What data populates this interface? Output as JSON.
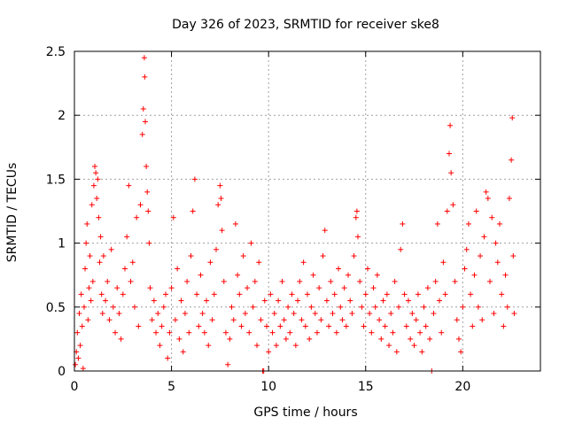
{
  "chart_data": {
    "type": "scatter",
    "title": "Day 326 of 2023, SRMTID for receiver ske8",
    "xlabel": "GPS time / hours",
    "ylabel": "SRMTID / TECUs",
    "xlim": [
      0,
      24
    ],
    "ylim": [
      0,
      2.5
    ],
    "xticks": [
      0,
      5,
      10,
      15,
      20
    ],
    "xtick_labels": [
      "0",
      "5",
      "10",
      "15",
      "20"
    ],
    "yticks": [
      0,
      0.5,
      1,
      1.5,
      2,
      2.5
    ],
    "ytick_labels": [
      "0",
      "0.5",
      "1",
      "1.5",
      "2",
      "2.5"
    ],
    "grid": true,
    "marker": "+",
    "color": "#ff0000",
    "series": [
      {
        "name": "SRMTID",
        "points": [
          [
            0.05,
            0.05
          ],
          [
            0.1,
            0.15
          ],
          [
            0.15,
            0.3
          ],
          [
            0.2,
            0.1
          ],
          [
            0.25,
            0.45
          ],
          [
            0.3,
            0.2
          ],
          [
            0.35,
            0.6
          ],
          [
            0.4,
            0.35
          ],
          [
            0.45,
            0.02
          ],
          [
            0.5,
            0.5
          ],
          [
            0.55,
            0.8
          ],
          [
            0.6,
            1.0
          ],
          [
            0.65,
            1.15
          ],
          [
            0.7,
            0.4
          ],
          [
            0.75,
            0.65
          ],
          [
            0.8,
            0.9
          ],
          [
            0.85,
            0.55
          ],
          [
            0.9,
            1.3
          ],
          [
            0.95,
            0.7
          ],
          [
            1.0,
            1.45
          ],
          [
            1.05,
            1.6
          ],
          [
            1.1,
            1.55
          ],
          [
            1.15,
            1.35
          ],
          [
            1.2,
            1.5
          ],
          [
            1.25,
            1.2
          ],
          [
            1.3,
            0.85
          ],
          [
            1.35,
            1.05
          ],
          [
            1.4,
            0.6
          ],
          [
            1.45,
            0.45
          ],
          [
            1.5,
            0.9
          ],
          [
            1.6,
            0.55
          ],
          [
            1.7,
            0.7
          ],
          [
            1.8,
            0.4
          ],
          [
            1.9,
            0.95
          ],
          [
            2.0,
            0.5
          ],
          [
            2.1,
            0.3
          ],
          [
            2.2,
            0.65
          ],
          [
            2.3,
            0.45
          ],
          [
            2.4,
            0.25
          ],
          [
            2.5,
            0.6
          ],
          [
            2.6,
            0.8
          ],
          [
            2.7,
            1.05
          ],
          [
            2.8,
            1.45
          ],
          [
            2.9,
            0.7
          ],
          [
            3.0,
            0.85
          ],
          [
            3.1,
            0.5
          ],
          [
            3.2,
            1.2
          ],
          [
            3.3,
            0.35
          ],
          [
            3.4,
            1.3
          ],
          [
            3.5,
            1.85
          ],
          [
            3.55,
            2.05
          ],
          [
            3.6,
            2.45
          ],
          [
            3.62,
            2.3
          ],
          [
            3.65,
            1.95
          ],
          [
            3.7,
            1.6
          ],
          [
            3.75,
            1.4
          ],
          [
            3.8,
            1.25
          ],
          [
            3.85,
            1.0
          ],
          [
            3.9,
            0.65
          ],
          [
            4.0,
            0.4
          ],
          [
            4.1,
            0.55
          ],
          [
            4.2,
            0.3
          ],
          [
            4.3,
            0.45
          ],
          [
            4.4,
            0.2
          ],
          [
            4.5,
            0.35
          ],
          [
            4.6,
            0.5
          ],
          [
            4.7,
            0.6
          ],
          [
            4.8,
            0.1
          ],
          [
            4.9,
            0.3
          ],
          [
            5.0,
            0.65
          ],
          [
            5.1,
            1.2
          ],
          [
            5.2,
            0.4
          ],
          [
            5.3,
            0.8
          ],
          [
            5.4,
            0.25
          ],
          [
            5.5,
            0.55
          ],
          [
            5.6,
            0.15
          ],
          [
            5.7,
            0.45
          ],
          [
            5.8,
            0.7
          ],
          [
            5.9,
            0.3
          ],
          [
            6.0,
            0.9
          ],
          [
            6.1,
            1.25
          ],
          [
            6.2,
            1.5
          ],
          [
            6.3,
            0.6
          ],
          [
            6.4,
            0.35
          ],
          [
            6.5,
            0.75
          ],
          [
            6.6,
            0.45
          ],
          [
            6.7,
            0.3
          ],
          [
            6.8,
            0.55
          ],
          [
            6.9,
            0.2
          ],
          [
            7.0,
            0.85
          ],
          [
            7.1,
            0.4
          ],
          [
            7.2,
            0.6
          ],
          [
            7.3,
            0.95
          ],
          [
            7.4,
            1.3
          ],
          [
            7.5,
            1.45
          ],
          [
            7.55,
            1.35
          ],
          [
            7.6,
            1.1
          ],
          [
            7.7,
            0.7
          ],
          [
            7.8,
            0.3
          ],
          [
            7.9,
            0.05
          ],
          [
            8.0,
            0.25
          ],
          [
            8.1,
            0.5
          ],
          [
            8.2,
            0.4
          ],
          [
            8.3,
            1.15
          ],
          [
            8.4,
            0.75
          ],
          [
            8.5,
            0.6
          ],
          [
            8.6,
            0.35
          ],
          [
            8.7,
            0.9
          ],
          [
            8.8,
            0.45
          ],
          [
            8.9,
            0.65
          ],
          [
            9.0,
            0.3
          ],
          [
            9.1,
            1.0
          ],
          [
            9.2,
            0.5
          ],
          [
            9.3,
            0.7
          ],
          [
            9.4,
            0.2
          ],
          [
            9.5,
            0.85
          ],
          [
            9.6,
            0.4
          ],
          [
            9.7,
            0.0
          ],
          [
            9.75,
            0.0
          ],
          [
            9.8,
            0.55
          ],
          [
            9.9,
            0.35
          ],
          [
            10.0,
            0.15
          ],
          [
            10.1,
            0.6
          ],
          [
            10.2,
            0.3
          ],
          [
            10.3,
            0.45
          ],
          [
            10.4,
            0.2
          ],
          [
            10.5,
            0.55
          ],
          [
            10.6,
            0.35
          ],
          [
            10.7,
            0.7
          ],
          [
            10.8,
            0.4
          ],
          [
            10.9,
            0.25
          ],
          [
            11.0,
            0.5
          ],
          [
            11.1,
            0.3
          ],
          [
            11.2,
            0.6
          ],
          [
            11.3,
            0.45
          ],
          [
            11.4,
            0.2
          ],
          [
            11.5,
            0.55
          ],
          [
            11.6,
            0.7
          ],
          [
            11.7,
            0.4
          ],
          [
            11.8,
            0.85
          ],
          [
            11.9,
            0.35
          ],
          [
            12.0,
            0.6
          ],
          [
            12.1,
            0.25
          ],
          [
            12.2,
            0.5
          ],
          [
            12.3,
            0.75
          ],
          [
            12.4,
            0.45
          ],
          [
            12.5,
            0.3
          ],
          [
            12.6,
            0.65
          ],
          [
            12.7,
            0.4
          ],
          [
            12.8,
            0.9
          ],
          [
            12.9,
            1.1
          ],
          [
            13.0,
            0.55
          ],
          [
            13.1,
            0.35
          ],
          [
            13.2,
            0.7
          ],
          [
            13.3,
            0.45
          ],
          [
            13.4,
            0.6
          ],
          [
            13.5,
            0.3
          ],
          [
            13.6,
            0.8
          ],
          [
            13.7,
            0.5
          ],
          [
            13.8,
            0.4
          ],
          [
            13.9,
            0.65
          ],
          [
            14.0,
            0.35
          ],
          [
            14.1,
            0.75
          ],
          [
            14.2,
            0.55
          ],
          [
            14.3,
            0.45
          ],
          [
            14.4,
            0.9
          ],
          [
            14.5,
            1.2
          ],
          [
            14.55,
            1.25
          ],
          [
            14.6,
            1.05
          ],
          [
            14.7,
            0.7
          ],
          [
            14.8,
            0.5
          ],
          [
            14.9,
            0.35
          ],
          [
            15.0,
            0.6
          ],
          [
            15.1,
            0.8
          ],
          [
            15.2,
            0.45
          ],
          [
            15.3,
            0.3
          ],
          [
            15.4,
            0.65
          ],
          [
            15.5,
            0.5
          ],
          [
            15.6,
            0.75
          ],
          [
            15.7,
            0.4
          ],
          [
            15.8,
            0.25
          ],
          [
            15.9,
            0.55
          ],
          [
            16.0,
            0.35
          ],
          [
            16.1,
            0.6
          ],
          [
            16.2,
            0.2
          ],
          [
            16.3,
            0.45
          ],
          [
            16.4,
            0.3
          ],
          [
            16.5,
            0.7
          ],
          [
            16.6,
            0.15
          ],
          [
            16.7,
            0.5
          ],
          [
            16.8,
            0.95
          ],
          [
            16.9,
            1.15
          ],
          [
            17.0,
            0.6
          ],
          [
            17.1,
            0.35
          ],
          [
            17.2,
            0.55
          ],
          [
            17.3,
            0.25
          ],
          [
            17.4,
            0.45
          ],
          [
            17.5,
            0.2
          ],
          [
            17.6,
            0.4
          ],
          [
            17.7,
            0.6
          ],
          [
            17.8,
            0.3
          ],
          [
            17.9,
            0.15
          ],
          [
            18.0,
            0.5
          ],
          [
            18.1,
            0.35
          ],
          [
            18.2,
            0.65
          ],
          [
            18.3,
            0.25
          ],
          [
            18.4,
            0.0
          ],
          [
            18.5,
            0.45
          ],
          [
            18.6,
            0.7
          ],
          [
            18.7,
            1.15
          ],
          [
            18.8,
            0.55
          ],
          [
            18.9,
            0.3
          ],
          [
            19.0,
            0.85
          ],
          [
            19.1,
            0.6
          ],
          [
            19.2,
            1.25
          ],
          [
            19.3,
            1.7
          ],
          [
            19.35,
            1.92
          ],
          [
            19.4,
            1.55
          ],
          [
            19.5,
            1.3
          ],
          [
            19.6,
            0.7
          ],
          [
            19.7,
            0.4
          ],
          [
            19.8,
            0.25
          ],
          [
            19.9,
            0.15
          ],
          [
            20.0,
            0.5
          ],
          [
            20.1,
            0.8
          ],
          [
            20.2,
            0.95
          ],
          [
            20.3,
            1.15
          ],
          [
            20.4,
            0.6
          ],
          [
            20.5,
            0.35
          ],
          [
            20.6,
            0.75
          ],
          [
            20.7,
            1.25
          ],
          [
            20.8,
            0.5
          ],
          [
            20.9,
            0.9
          ],
          [
            21.0,
            0.4
          ],
          [
            21.1,
            1.05
          ],
          [
            21.2,
            1.4
          ],
          [
            21.3,
            1.35
          ],
          [
            21.4,
            0.7
          ],
          [
            21.5,
            1.2
          ],
          [
            21.6,
            0.45
          ],
          [
            21.7,
            1.0
          ],
          [
            21.8,
            0.85
          ],
          [
            21.9,
            1.15
          ],
          [
            22.0,
            0.6
          ],
          [
            22.1,
            0.35
          ],
          [
            22.2,
            0.75
          ],
          [
            22.3,
            0.5
          ],
          [
            22.4,
            1.35
          ],
          [
            22.5,
            1.65
          ],
          [
            22.55,
            1.98
          ],
          [
            22.6,
            0.9
          ],
          [
            22.65,
            0.45
          ]
        ]
      }
    ]
  }
}
